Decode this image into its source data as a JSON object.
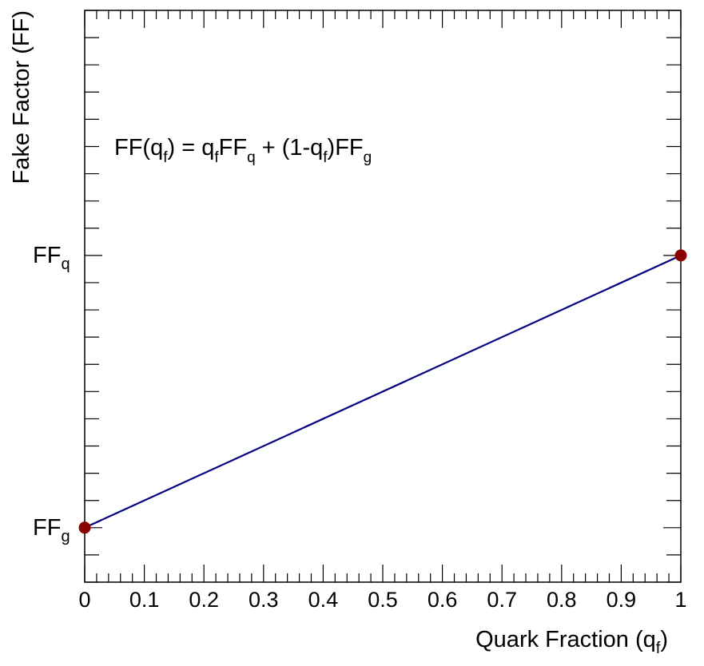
{
  "chart_data": {
    "type": "line",
    "xlabel": "Quark Fraction (q",
    "xlabel_sub": "f",
    "xlabel_close": ")",
    "ylabel": "Fake Factor (FF)",
    "xlim": [
      0,
      1
    ],
    "x_ticks": [
      "0",
      "0.1",
      "0.2",
      "0.3",
      "0.4",
      "0.5",
      "0.6",
      "0.7",
      "0.8",
      "0.9",
      "1"
    ],
    "y_tick_labels": [
      {
        "base": "FF",
        "sub": "g",
        "value": 0
      },
      {
        "base": "FF",
        "sub": "q",
        "value": 1
      }
    ],
    "ylim": [
      -0.2,
      1.9
    ],
    "series": [
      {
        "x": [
          0,
          1
        ],
        "y": [
          0,
          1
        ],
        "line_color": "#000080",
        "marker_color": "#8b0000",
        "markers": [
          0,
          1
        ]
      }
    ],
    "annotation": {
      "parts": [
        {
          "t": "FF(q",
          "sub": false
        },
        {
          "t": "f",
          "sub": true
        },
        {
          "t": ") = q",
          "sub": false
        },
        {
          "t": "f",
          "sub": true
        },
        {
          "t": "FF",
          "sub": false
        },
        {
          "t": "q",
          "sub": true
        },
        {
          "t": " + (1-q",
          "sub": false
        },
        {
          "t": "f",
          "sub": true
        },
        {
          "t": ")FF",
          "sub": false
        },
        {
          "t": "g",
          "sub": true
        }
      ]
    },
    "grid": false
  }
}
